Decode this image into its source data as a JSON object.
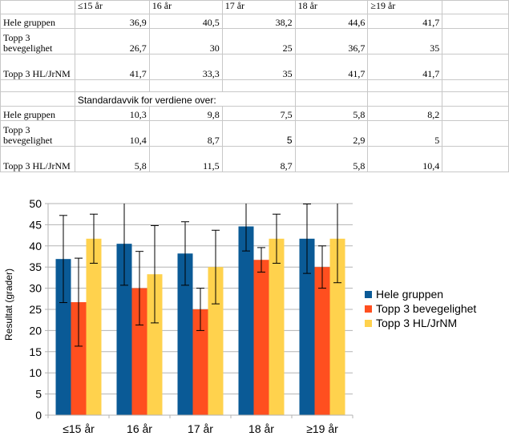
{
  "table": {
    "header": [
      "",
      "≤15 år",
      "16 år",
      "17 år",
      "18 år",
      "≥19 år",
      ""
    ],
    "rows1": [
      {
        "label": "Hele gruppen",
        "values": [
          "36,9",
          "40,5",
          "38,2",
          "44,6",
          "41,7"
        ]
      },
      {
        "label": "Topp 3 bevegelighet",
        "values": [
          "26,7",
          "30",
          "25",
          "36,7",
          "35"
        ]
      },
      {
        "label": "Topp 3 HL/JrNM",
        "values": [
          "41,7",
          "33,3",
          "35",
          "41,7",
          "41,7"
        ]
      }
    ],
    "sd_title": "Standardavvik for verdiene over:",
    "rows2": [
      {
        "label": "Hele gruppen",
        "values": [
          "10,3",
          "9,8",
          "7,5",
          "5,8",
          "8,2"
        ]
      },
      {
        "label": "Topp 3 bevegelighet",
        "values": [
          "10,4",
          "8,7",
          "5",
          "2,9",
          "5"
        ]
      },
      {
        "label": "Topp 3 HL/JrNM",
        "values": [
          "5,8",
          "11,5",
          "8,7",
          "5,8",
          "10,4"
        ]
      }
    ]
  },
  "chart_data": {
    "type": "bar",
    "categories": [
      "≤15 år",
      "16 år",
      "17 år",
      "18 år",
      "≥19 år"
    ],
    "series": [
      {
        "name": "Hele gruppen",
        "color": "#0a5a96",
        "values": [
          36.9,
          40.5,
          38.2,
          44.6,
          41.7
        ],
        "errors": [
          10.3,
          9.8,
          7.5,
          5.8,
          8.2
        ]
      },
      {
        "name": "Topp 3 bevegelighet",
        "color": "#ff4f1f",
        "values": [
          26.7,
          30,
          25,
          36.7,
          35
        ],
        "errors": [
          10.4,
          8.7,
          5,
          2.9,
          5
        ]
      },
      {
        "name": "Topp 3 HL/JrNM",
        "color": "#ffd24d",
        "values": [
          41.7,
          33.3,
          35,
          41.7,
          41.7
        ],
        "errors": [
          5.8,
          11.5,
          8.7,
          5.8,
          10.4
        ]
      }
    ],
    "ylabel": "Resultat (grader)",
    "xlabel": "",
    "ylim": [
      0,
      50
    ],
    "yticks": [
      0,
      5,
      10,
      15,
      20,
      25,
      30,
      35,
      40,
      45,
      50
    ],
    "grid": true,
    "legend": "right",
    "error_bars": true
  }
}
